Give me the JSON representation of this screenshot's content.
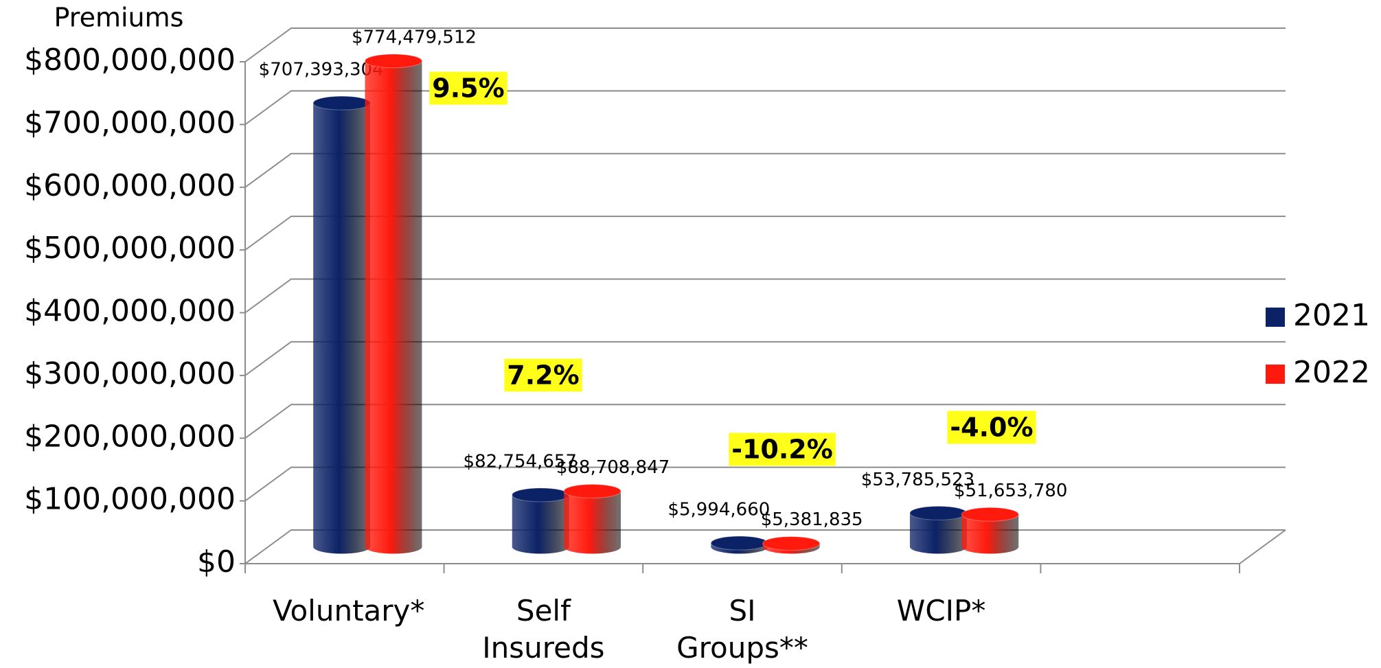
{
  "chart_data": {
    "type": "bar",
    "y_label": "Premiums",
    "categories": [
      "Voluntary*",
      "Self Insureds",
      "SI Groups**",
      "WCIP*"
    ],
    "series": [
      {
        "name": "2021",
        "color": "#0c2266",
        "values": [
          707393304,
          82754657,
          5994660,
          53785523
        ],
        "value_labels": [
          "$707,393,304",
          "$82,754,657",
          "$5,994,660",
          "$53,785,523"
        ]
      },
      {
        "name": "2022",
        "color": "#ff1a0d",
        "values": [
          774479512,
          88708847,
          5381835,
          51653780
        ],
        "value_labels": [
          "$774,479,512",
          "$88,708,847",
          "$5,381,835",
          "$51,653,780"
        ]
      }
    ],
    "annotations": [
      "9.5%",
      "7.2%",
      "-10.2%",
      "-4.0%"
    ],
    "ylim": [
      0,
      800000000
    ],
    "yticks": [
      {
        "value": 0,
        "label": "$0"
      },
      {
        "value": 100000000,
        "label": "$100,000,000"
      },
      {
        "value": 200000000,
        "label": "$200,000,000"
      },
      {
        "value": 300000000,
        "label": "$300,000,000"
      },
      {
        "value": 400000000,
        "label": "$400,000,000"
      },
      {
        "value": 500000000,
        "label": "$500,000,000"
      },
      {
        "value": 600000000,
        "label": "$600,000,000"
      },
      {
        "value": 700000000,
        "label": "$700,000,000"
      },
      {
        "value": 800000000,
        "label": "$800,000,000"
      }
    ],
    "grid": true,
    "legend": "right"
  }
}
